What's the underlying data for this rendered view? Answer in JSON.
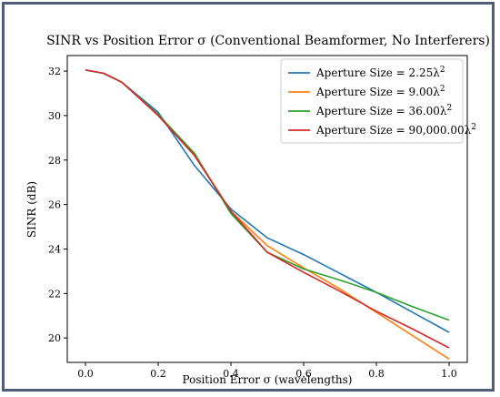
{
  "chart_data": {
    "type": "line",
    "title": "SINR vs Position Error σ (Conventional Beamformer, No Interferers)",
    "xlabel": "Position Error σ (wavelengths)",
    "ylabel": "SINR (dB)",
    "xlim": [
      -0.05,
      1.05
    ],
    "ylim": [
      18.9,
      32.7
    ],
    "xticks": [
      0.0,
      0.2,
      0.4,
      0.6,
      0.8,
      1.0
    ],
    "xtick_labels": [
      "0.0",
      "0.2",
      "0.4",
      "0.6",
      "0.8",
      "1.0"
    ],
    "yticks": [
      20,
      22,
      24,
      26,
      28,
      30,
      32
    ],
    "ytick_labels": [
      "20",
      "22",
      "24",
      "26",
      "28",
      "30",
      "32"
    ],
    "grid": false,
    "legend_position": "top-right",
    "x": [
      0.0,
      0.05,
      0.1,
      0.2,
      0.3,
      0.4,
      0.5,
      0.6,
      0.7,
      0.8,
      0.9,
      1.0
    ],
    "series": [
      {
        "name": "Aperture Size = 2.25λ²",
        "label_base": "Aperture Size = 2.25λ",
        "label_sup": "2",
        "color": "#1f77b4",
        "values": [
          32.05,
          31.9,
          31.5,
          30.15,
          27.75,
          25.8,
          24.5,
          23.75,
          22.9,
          22.05,
          21.15,
          20.25
        ]
      },
      {
        "name": "Aperture Size = 9.00λ²",
        "label_base": "Aperture Size = 9.00λ",
        "label_sup": "2",
        "color": "#ff7f0e",
        "values": [
          32.05,
          31.9,
          31.5,
          30.05,
          28.25,
          25.7,
          24.15,
          23.15,
          22.2,
          21.15,
          20.1,
          19.05
        ]
      },
      {
        "name": "Aperture Size = 36.00λ²",
        "label_base": "Aperture Size = 36.00λ",
        "label_sup": "2",
        "color": "#2ca02c",
        "values": [
          32.05,
          31.9,
          31.5,
          30.05,
          28.3,
          25.6,
          23.85,
          23.1,
          22.6,
          22.05,
          21.4,
          20.8
        ]
      },
      {
        "name": "Aperture Size = 90,000.00λ²",
        "label_base": "Aperture Size = 90,000.00λ",
        "label_sup": "2",
        "color": "#d62728",
        "values": [
          32.05,
          31.9,
          31.5,
          30.0,
          28.2,
          25.7,
          23.85,
          22.95,
          22.1,
          21.2,
          20.4,
          19.55
        ]
      }
    ]
  }
}
